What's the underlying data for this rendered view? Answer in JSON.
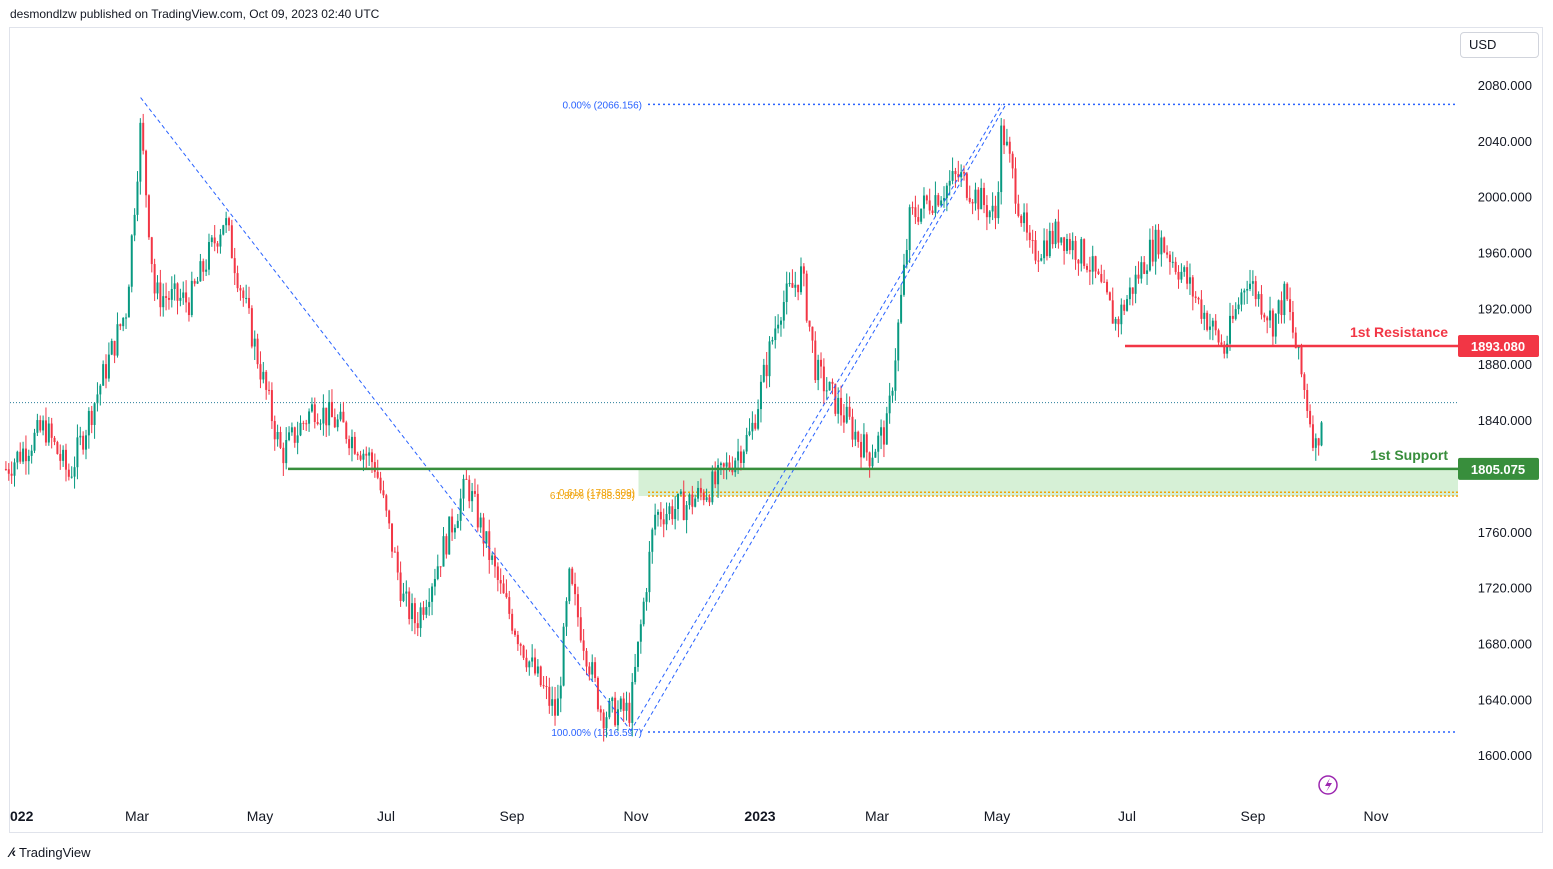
{
  "header": {
    "published_text": "desmondlzw published on TradingView.com, Oct 09, 2023 02:40 UTC"
  },
  "currency": "USD",
  "footer": {
    "brand": "TradingView",
    "logo_icon": "tradingview-logo-icon"
  },
  "colors": {
    "up": "#089981",
    "down": "#f23645",
    "resistance": "#f23645",
    "support": "#388e3c",
    "fib": "#2962ff",
    "fib_gold": "#f0a30a",
    "zone": "#d6f0d6"
  },
  "chart_data": {
    "type": "candlestick",
    "title": "",
    "xlabel": "",
    "ylabel": "",
    "ylim": [
      1580,
      2100
    ],
    "x_ticks": [
      "022",
      "Mar",
      "May",
      "Jul",
      "Sep",
      "Nov",
      "2023",
      "Mar",
      "May",
      "Jul",
      "Sep",
      "Nov"
    ],
    "y_ticks": [
      "2080.000",
      "2040.000",
      "2000.000",
      "1960.000",
      "1920.000",
      "1880.000",
      "1840.000",
      "1800.000",
      "1760.000",
      "1720.000",
      "1680.000",
      "1640.000",
      "1600.000"
    ],
    "price_path": [
      {
        "d": "2022-01-01",
        "p": 1805
      },
      {
        "d": "2022-01-20",
        "p": 1835
      },
      {
        "d": "2022-02-01",
        "p": 1800
      },
      {
        "d": "2022-02-15",
        "p": 1860
      },
      {
        "d": "2022-03-01",
        "p": 1920
      },
      {
        "d": "2022-03-08",
        "p": 2050
      },
      {
        "d": "2022-03-15",
        "p": 1930
      },
      {
        "d": "2022-04-01",
        "p": 1925
      },
      {
        "d": "2022-04-18",
        "p": 1985
      },
      {
        "d": "2022-05-01",
        "p": 1905
      },
      {
        "d": "2022-05-16",
        "p": 1815
      },
      {
        "d": "2022-06-01",
        "p": 1850
      },
      {
        "d": "2022-06-15",
        "p": 1835
      },
      {
        "d": "2022-07-01",
        "p": 1808
      },
      {
        "d": "2022-07-15",
        "p": 1710
      },
      {
        "d": "2022-07-21",
        "p": 1695
      },
      {
        "d": "2022-08-15",
        "p": 1795
      },
      {
        "d": "2022-09-01",
        "p": 1715
      },
      {
        "d": "2022-09-15",
        "p": 1665
      },
      {
        "d": "2022-09-28",
        "p": 1628
      },
      {
        "d": "2022-10-04",
        "p": 1725
      },
      {
        "d": "2022-10-20",
        "p": 1630
      },
      {
        "d": "2022-11-03",
        "p": 1632
      },
      {
        "d": "2022-11-15",
        "p": 1772
      },
      {
        "d": "2022-12-01",
        "p": 1780
      },
      {
        "d": "2022-12-15",
        "p": 1795
      },
      {
        "d": "2023-01-01",
        "p": 1830
      },
      {
        "d": "2023-01-15",
        "p": 1920
      },
      {
        "d": "2023-01-26",
        "p": 1945
      },
      {
        "d": "2023-02-02",
        "p": 1875
      },
      {
        "d": "2023-02-28",
        "p": 1815
      },
      {
        "d": "2023-03-09",
        "p": 1835
      },
      {
        "d": "2023-03-20",
        "p": 1985
      },
      {
        "d": "2023-04-13",
        "p": 2015
      },
      {
        "d": "2023-05-01",
        "p": 1985
      },
      {
        "d": "2023-05-04",
        "p": 2050
      },
      {
        "d": "2023-05-18",
        "p": 1958
      },
      {
        "d": "2023-06-01",
        "p": 1975
      },
      {
        "d": "2023-06-15",
        "p": 1955
      },
      {
        "d": "2023-06-29",
        "p": 1910
      },
      {
        "d": "2023-07-15",
        "p": 1960
      },
      {
        "d": "2023-07-20",
        "p": 1970
      },
      {
        "d": "2023-08-01",
        "p": 1944
      },
      {
        "d": "2023-08-21",
        "p": 1890
      },
      {
        "d": "2023-09-01",
        "p": 1943
      },
      {
        "d": "2023-09-14",
        "p": 1910
      },
      {
        "d": "2023-09-20",
        "p": 1930
      },
      {
        "d": "2023-10-05",
        "p": 1820
      },
      {
        "d": "2023-10-09",
        "p": 1855
      }
    ],
    "levels": {
      "resistance": {
        "label": "1st Resistance",
        "value_label": "1893.080",
        "value": 1893.08
      },
      "support": {
        "label": "1st Support",
        "value_label": "1805.075",
        "value": 1805.075
      },
      "last_price_dotted": 1852.5
    },
    "fib_retracement": {
      "top_label": "0.00% (2066.156)",
      "top": 2066.156,
      "bottom_label": "100.00% (1616.597)",
      "bottom": 1616.597
    },
    "fib_gold_lines": [
      {
        "label": "0.618 (1785.609)",
        "value": 1785.609
      },
      {
        "label": "61.80% (1788.329)",
        "value": 1788.329
      }
    ],
    "zone": {
      "top": 1805.075,
      "bottom": 1785.609,
      "start": "2022-11-07"
    },
    "trendlines": [
      {
        "from": {
          "d": "2022-03-08",
          "p": 2071
        },
        "to": {
          "d": "2022-11-03",
          "p": 1618
        }
      },
      {
        "from": {
          "d": "2022-11-03",
          "p": 1617
        },
        "to": {
          "d": "2023-05-04",
          "p": 2066
        }
      },
      {
        "from": {
          "d": "2022-11-08",
          "p": 1616
        },
        "to": {
          "d": "2023-05-06",
          "p": 2066
        }
      }
    ],
    "lightning_icon": "lightning-icon"
  }
}
